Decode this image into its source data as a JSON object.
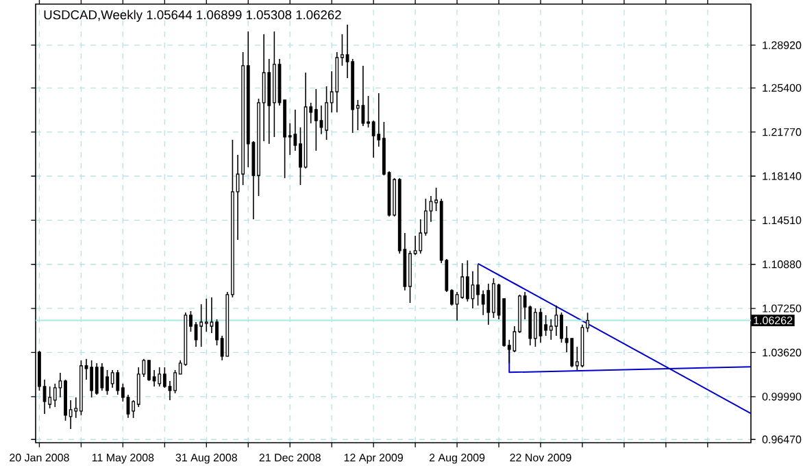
{
  "chart_data": {
    "type": "candlestick",
    "title": "USDCAD,Weekly  1.05644 1.06899 1.05308 1.06262",
    "color": "#000000",
    "grid": true,
    "x": [
      "2008-01-20",
      "2008-01-27",
      "2008-02-03",
      "2008-02-10",
      "2008-02-17",
      "2008-02-24",
      "2008-03-02",
      "2008-03-09",
      "2008-03-16",
      "2008-03-23",
      "2008-03-30",
      "2008-04-06",
      "2008-04-13",
      "2008-04-20",
      "2008-04-27",
      "2008-05-04",
      "2008-05-11",
      "2008-05-18",
      "2008-05-25",
      "2008-06-01",
      "2008-06-08",
      "2008-06-15",
      "2008-06-22",
      "2008-06-29",
      "2008-07-06",
      "2008-07-13",
      "2008-07-20",
      "2008-07-27",
      "2008-08-03",
      "2008-08-10",
      "2008-08-17",
      "2008-08-24",
      "2008-08-31",
      "2008-09-07",
      "2008-09-14",
      "2008-09-21",
      "2008-09-28",
      "2008-10-05",
      "2008-10-12",
      "2008-10-19",
      "2008-10-26",
      "2008-11-02",
      "2008-11-09",
      "2008-11-16",
      "2008-11-23",
      "2008-11-30",
      "2008-12-07",
      "2008-12-14",
      "2008-12-21",
      "2008-12-28",
      "2009-01-04",
      "2009-01-11",
      "2009-01-18",
      "2009-01-25",
      "2009-02-01",
      "2009-02-08",
      "2009-02-15",
      "2009-02-22",
      "2009-03-01",
      "2009-03-08",
      "2009-03-15",
      "2009-03-22",
      "2009-03-29",
      "2009-04-05",
      "2009-04-12",
      "2009-04-19",
      "2009-04-26",
      "2009-05-03",
      "2009-05-10",
      "2009-05-17",
      "2009-05-24",
      "2009-05-31",
      "2009-06-07",
      "2009-06-14",
      "2009-06-21",
      "2009-06-28",
      "2009-07-05",
      "2009-07-12",
      "2009-07-19",
      "2009-07-26",
      "2009-08-02",
      "2009-08-09",
      "2009-08-16",
      "2009-08-23",
      "2009-08-30",
      "2009-09-06",
      "2009-09-13",
      "2009-09-20",
      "2009-09-27",
      "2009-10-04",
      "2009-10-11",
      "2009-10-18",
      "2009-10-25",
      "2009-11-01",
      "2009-11-08",
      "2009-11-15",
      "2009-11-22",
      "2009-11-29",
      "2009-12-06",
      "2009-12-13",
      "2009-12-20",
      "2009-12-27",
      "2010-01-03",
      "2010-01-10",
      "2010-01-17",
      "2010-01-24"
    ],
    "ohlc": [
      [
        1.0365,
        1.0376,
        1.0049,
        1.0083
      ],
      [
        1.0083,
        1.0139,
        0.9857,
        0.9959
      ],
      [
        0.9936,
        1.0083,
        0.9903,
        0.9993
      ],
      [
        0.997,
        1.0106,
        0.9914,
        1.0072
      ],
      [
        1.0072,
        1.0196,
        0.9993,
        1.0128
      ],
      [
        1.0128,
        1.0139,
        0.9801,
        0.9846
      ],
      [
        0.9835,
        0.997,
        0.9733,
        0.9891
      ],
      [
        0.988,
        0.9993,
        0.9824,
        0.9903
      ],
      [
        0.988,
        1.0298,
        0.9846,
        1.0253
      ],
      [
        1.0253,
        1.0309,
        1.0139,
        1.023
      ],
      [
        1.0241,
        1.0298,
        0.9993,
        1.0049
      ],
      [
        1.0241,
        1.0275,
        1.0015,
        1.0027
      ],
      [
        1.0241,
        1.0275,
        1.0049,
        1.0072
      ],
      [
        1.0162,
        1.0218,
        1.0015,
        1.0049
      ],
      [
        1.0106,
        1.0218,
        1.0072,
        1.0196
      ],
      [
        1.0196,
        1.0218,
        1.0015,
        1.0049
      ],
      [
        1.0072,
        1.0106,
        0.9959,
        0.9993
      ],
      [
        0.9993,
        1.0015,
        0.9824,
        0.9857
      ],
      [
        0.988,
        0.997,
        0.9824,
        0.9959
      ],
      [
        0.9936,
        1.0241,
        0.9914,
        1.0185
      ],
      [
        1.0185,
        1.0309,
        1.0162,
        1.0298
      ],
      [
        1.0298,
        1.0298,
        1.0128,
        1.0139
      ],
      [
        1.0162,
        1.0218,
        1.0083,
        1.0128
      ],
      [
        1.0106,
        1.0241,
        1.0083,
        1.0185
      ],
      [
        1.0185,
        1.0241,
        1.0072,
        1.0083
      ],
      [
        1.0083,
        1.0128,
        0.997,
        1.0049
      ],
      [
        1.0049,
        1.0218,
        1.0027,
        1.0196
      ],
      [
        1.0185,
        1.0298,
        1.0185,
        1.0275
      ],
      [
        1.0264,
        1.0692,
        1.0253,
        1.067
      ],
      [
        1.067,
        1.0703,
        1.0534,
        1.0579
      ],
      [
        1.0591,
        1.0613,
        1.041,
        1.0467
      ],
      [
        1.0579,
        1.076,
        1.041,
        1.0613
      ],
      [
        1.0602,
        1.0805,
        1.0534,
        1.0613
      ],
      [
        1.0579,
        1.0816,
        1.0523,
        1.0613
      ],
      [
        1.0613,
        1.0636,
        1.0421,
        1.0467
      ],
      [
        1.0478,
        1.05,
        1.0298,
        1.0331
      ],
      [
        1.0331,
        1.0861,
        1.0331,
        1.0839
      ],
      [
        1.0839,
        1.2113,
        1.0816,
        1.1685
      ],
      [
        1.1685,
        1.1989,
        1.129,
        1.1831
      ],
      [
        1.1831,
        1.2835,
        1.1741,
        1.2723
      ],
      [
        1.2723,
        1.3005,
        1.1888,
        1.208
      ],
      [
        1.2091,
        1.2102,
        1.1459,
        1.182
      ],
      [
        1.182,
        1.2452,
        1.1651,
        1.2418
      ],
      [
        1.2418,
        1.2982,
        1.2102,
        1.2666
      ],
      [
        1.2666,
        1.2779,
        1.208,
        1.2395
      ],
      [
        1.2418,
        1.3005,
        1.2136,
        1.2734
      ],
      [
        1.2734,
        1.2779,
        1.2395,
        1.2418
      ],
      [
        1.2441,
        1.2441,
        1.1798,
        1.2136
      ],
      [
        1.2147,
        1.2249,
        1.1989,
        1.2136
      ],
      [
        1.2159,
        1.2362,
        1.2023,
        1.2068
      ],
      [
        1.208,
        1.2215,
        1.1741,
        1.1888
      ],
      [
        1.1888,
        1.2666,
        1.1877,
        1.2384
      ],
      [
        1.2384,
        1.2418,
        1.2249,
        1.2339
      ],
      [
        1.2362,
        1.2531,
        1.2023,
        1.2271
      ],
      [
        1.2271,
        1.2395,
        1.2159,
        1.2215
      ],
      [
        1.2192,
        1.2553,
        1.2113,
        1.2418
      ],
      [
        1.2418,
        1.2677,
        1.2339,
        1.2508
      ],
      [
        1.2508,
        1.2835,
        1.2339,
        1.279
      ],
      [
        1.279,
        1.2982,
        1.2723,
        1.2813
      ],
      [
        1.2813,
        1.3061,
        1.2621,
        1.2756
      ],
      [
        1.2756,
        1.2779,
        1.217,
        1.2362
      ],
      [
        1.2373,
        1.2441,
        1.2192,
        1.2395
      ],
      [
        1.2395,
        1.2723,
        1.2226,
        1.2249
      ],
      [
        1.226,
        1.2474,
        1.2215,
        1.2249
      ],
      [
        1.226,
        1.2271,
        1.1967,
        1.2147
      ],
      [
        1.2159,
        1.2497,
        1.2057,
        1.2113
      ],
      [
        1.2125,
        1.226,
        1.182,
        1.1831
      ],
      [
        1.1843,
        1.1854,
        1.1482,
        1.1493
      ],
      [
        1.1493,
        1.1798,
        1.1482,
        1.1786
      ],
      [
        1.1786,
        1.1798,
        1.1177,
        1.12
      ],
      [
        1.1211,
        1.1346,
        1.0873,
        1.0906
      ],
      [
        1.0906,
        1.12,
        1.0771,
        1.1177
      ],
      [
        1.1177,
        1.1324,
        1.1166,
        1.12
      ],
      [
        1.12,
        1.1459,
        1.1177,
        1.1346
      ],
      [
        1.1346,
        1.1628,
        1.1324,
        1.1527
      ],
      [
        1.1527,
        1.1651,
        1.1437,
        1.1606
      ],
      [
        1.1595,
        1.1719,
        1.1527,
        1.1617
      ],
      [
        1.1606,
        1.1628,
        1.1098,
        1.1121
      ],
      [
        1.1121,
        1.1132,
        1.0861,
        1.0873
      ],
      [
        1.0873,
        1.0884,
        1.0749,
        1.076
      ],
      [
        1.076,
        1.0861,
        1.0625,
        1.0839
      ],
      [
        1.0816,
        1.1098,
        1.0805,
        1.0985
      ],
      [
        1.0985,
        1.1121,
        1.0782,
        1.0805
      ],
      [
        1.0805,
        1.1031,
        1.0726,
        1.0918
      ],
      [
        1.0918,
        1.1087,
        1.0749,
        1.0839
      ],
      [
        1.0839,
        1.0873,
        1.067,
        1.076
      ],
      [
        1.0873,
        1.0929,
        1.0591,
        1.0692
      ],
      [
        1.0692,
        1.0974,
        1.0647,
        1.0929
      ],
      [
        1.0918,
        1.0929,
        1.0636,
        1.067
      ],
      [
        1.0805,
        1.0805,
        1.041,
        1.0421
      ],
      [
        1.0421,
        1.0467,
        1.0275,
        1.0388
      ],
      [
        1.0376,
        1.0579,
        1.0365,
        1.0534
      ],
      [
        1.0534,
        1.0839,
        1.0523,
        1.0828
      ],
      [
        1.0828,
        1.0861,
        1.0636,
        1.0737
      ],
      [
        1.0737,
        1.0749,
        1.0421,
        1.0478
      ],
      [
        1.0478,
        1.0726,
        1.041,
        1.0692
      ],
      [
        1.0692,
        1.0726,
        1.0444,
        1.05
      ],
      [
        1.0591,
        1.067,
        1.05,
        1.0546
      ],
      [
        1.0546,
        1.0636,
        1.0467,
        1.0579
      ],
      [
        1.0579,
        1.0749,
        1.05,
        1.067
      ],
      [
        1.067,
        1.0692,
        1.0444,
        1.0478
      ],
      [
        1.0478,
        1.0579,
        1.0365,
        1.0444
      ],
      [
        1.0478,
        1.0478,
        1.0241,
        1.0253
      ],
      [
        1.0253,
        1.041,
        1.0218,
        1.0286
      ],
      [
        1.0253,
        1.0591,
        1.0241,
        1.0568
      ],
      [
        1.05644,
        1.06899,
        1.05308,
        1.06262
      ]
    ],
    "series": [
      {
        "type": "line",
        "color": "#0000cc",
        "x": [
          "2009-08-30",
          "2010-08-31"
        ],
        "values": [
          1.1095,
          0.9861
        ]
      },
      {
        "type": "line",
        "color": "#0000cc",
        "x": [
          "2009-10-11",
          "2009-10-11",
          "2010-08-31"
        ],
        "values": [
          1.041,
          1.0199,
          1.0245
        ]
      }
    ],
    "ref_lines": [
      {
        "axis": "y",
        "value": 1.06262,
        "label": "1.06262",
        "color": "#a8e8e8"
      }
    ],
    "xlim": [
      "2008-01-15",
      "2010-08-31"
    ],
    "xticks": [
      {
        "value": "2008-01-20",
        "label": "20 Jan 2008"
      },
      {
        "value": "2008-03-16",
        "label": null
      },
      {
        "value": "2008-05-11",
        "label": "11 May 2008"
      },
      {
        "value": "2008-07-06",
        "label": null
      },
      {
        "value": "2008-08-31",
        "label": "31 Aug 2008"
      },
      {
        "value": "2008-10-26",
        "label": null
      },
      {
        "value": "2008-12-21",
        "label": "21 Dec 2008"
      },
      {
        "value": "2009-02-15",
        "label": null
      },
      {
        "value": "2009-04-12",
        "label": "12 Apr 2009"
      },
      {
        "value": "2009-06-07",
        "label": null
      },
      {
        "value": "2009-08-02",
        "label": "2 Aug 2009"
      },
      {
        "value": "2009-09-27",
        "label": null
      },
      {
        "value": "2009-11-22",
        "label": "22 Nov 2009"
      },
      {
        "value": "2010-01-17",
        "label": null
      },
      {
        "value": "2010-03-14",
        "label": null
      },
      {
        "value": "2010-05-09",
        "label": null
      },
      {
        "value": "2010-07-04",
        "label": null
      }
    ],
    "ylim": [
      0.962,
      1.323
    ],
    "yticks": [
      {
        "value": 0.9647,
        "label": "0.96470"
      },
      {
        "value": 0.9999,
        "label": "0.99990"
      },
      {
        "value": 1.0362,
        "label": "1.03620"
      },
      {
        "value": 1.0725,
        "label": "1.07250"
      },
      {
        "value": 1.1088,
        "label": "1.10880"
      },
      {
        "value": 1.1451,
        "label": "1.14510"
      },
      {
        "value": 1.1814,
        "label": "1.18140"
      },
      {
        "value": 1.2177,
        "label": "1.21770"
      },
      {
        "value": 1.254,
        "label": "1.25400"
      },
      {
        "value": 1.2892,
        "label": "1.28920"
      }
    ]
  }
}
